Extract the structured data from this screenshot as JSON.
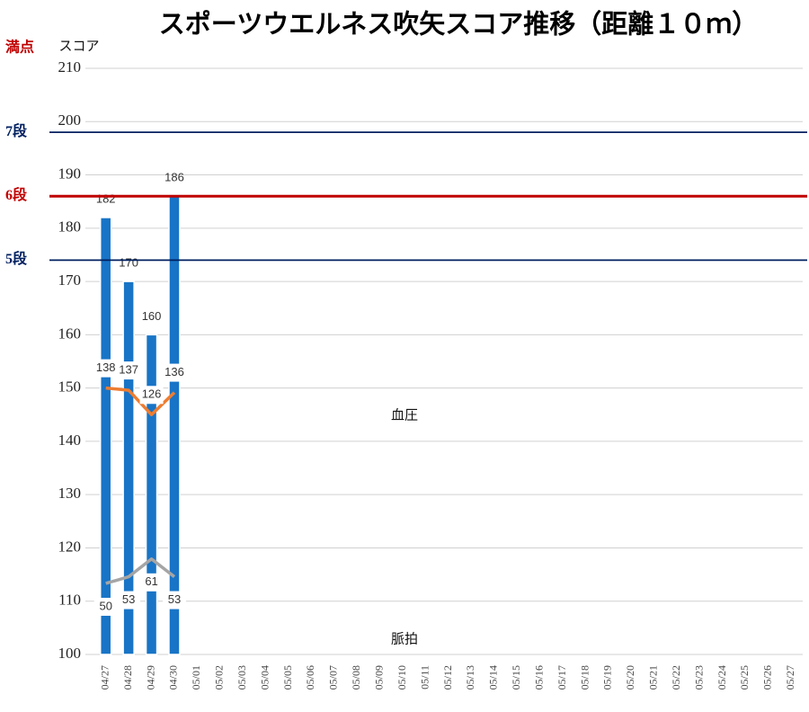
{
  "chart_data": {
    "type": "bar",
    "title": "スポーツウエルネス吹矢スコア推移（距離１０ｍ）",
    "y_label": "スコア",
    "categories": [
      "04/27",
      "04/28",
      "04/29",
      "04/30",
      "05/01",
      "05/02",
      "05/03",
      "05/04",
      "05/05",
      "05/06",
      "05/07",
      "05/08",
      "05/09",
      "05/10",
      "05/11",
      "05/12",
      "05/13",
      "05/14",
      "05/15",
      "05/16",
      "05/17",
      "05/18",
      "05/19",
      "05/20",
      "05/21",
      "05/22",
      "05/23",
      "05/24",
      "05/25",
      "05/26",
      "05/27"
    ],
    "values": [
      182,
      170,
      160,
      186,
      null,
      null,
      null,
      null,
      null,
      null,
      null,
      null,
      null,
      null,
      null,
      null,
      null,
      null,
      null,
      null,
      null,
      null,
      null,
      null,
      null,
      null,
      null,
      null,
      null,
      null,
      null
    ],
    "color": "#1874c6",
    "ylim": [
      100,
      210
    ],
    "yticks": [
      100,
      110,
      120,
      130,
      140,
      150,
      160,
      170,
      180,
      190,
      200,
      210
    ],
    "grid": true,
    "y2lim": [
      18,
      282
    ],
    "series": [
      {
        "name": "血圧",
        "type": "line",
        "axis": "y2",
        "color": "#ed7d31",
        "label_side": "above",
        "values": [
          138,
          137,
          126,
          136,
          null,
          null,
          null,
          null,
          null,
          null,
          null,
          null,
          null,
          null,
          null,
          null,
          null,
          null,
          null,
          null,
          null,
          null,
          null,
          null,
          null,
          null,
          null,
          null,
          null,
          null,
          null
        ]
      },
      {
        "name": "脈拍",
        "type": "line",
        "axis": "y2",
        "color": "#a5a5a5",
        "label_side": "below",
        "values": [
          50,
          53,
          61,
          53,
          null,
          null,
          null,
          null,
          null,
          null,
          null,
          null,
          null,
          null,
          null,
          null,
          null,
          null,
          null,
          null,
          null,
          null,
          null,
          null,
          null,
          null,
          null,
          null,
          null,
          null,
          null
        ]
      }
    ],
    "full_score": {
      "label": "満点",
      "value": 210,
      "color": "#c00000"
    },
    "ref_lines": [
      {
        "label": "7段",
        "value": 198,
        "color": "#002060"
      },
      {
        "label": "6段",
        "value": 186,
        "color": "#c00000"
      },
      {
        "label": "5段",
        "value": 174,
        "color": "#002060"
      }
    ]
  }
}
